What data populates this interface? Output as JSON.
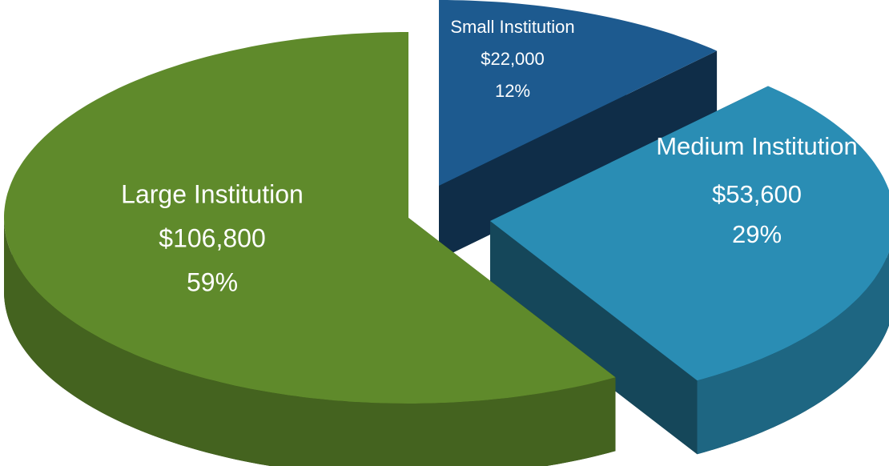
{
  "chart_data": {
    "type": "pie",
    "categories": [
      "Small Institution",
      "Medium Institution",
      "Large Institution"
    ],
    "values": [
      22000,
      53600,
      106800
    ],
    "value_labels": [
      "$22,000",
      "$53,600",
      "$106,800"
    ],
    "percentages": [
      12,
      29,
      59
    ],
    "percentage_labels": [
      "12%",
      "29%",
      "59%"
    ],
    "colors": [
      "#1d5a8f",
      "#2a8db4",
      "#5f8a2b"
    ],
    "exploded": true
  }
}
